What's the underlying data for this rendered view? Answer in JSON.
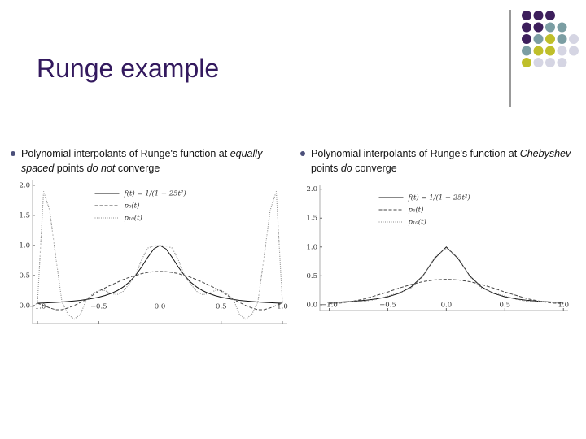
{
  "slide": {
    "title": "Runge example",
    "bullets": [
      [
        {
          "text": "Polynomial interpolants of Runge's function at ",
          "italic": false
        },
        {
          "text": "equally spaced",
          "italic": true
        },
        {
          "text": " points ",
          "italic": false
        },
        {
          "text": "do not",
          "italic": true
        },
        {
          "text": " converge",
          "italic": false
        }
      ],
      [
        {
          "text": "Polynomial interpolants of Runge's function at ",
          "italic": false
        },
        {
          "text": "Chebyshev",
          "italic": true
        },
        {
          "text": " points ",
          "italic": false
        },
        {
          "text": "do",
          "italic": true
        },
        {
          "text": " converge",
          "italic": false
        }
      ]
    ]
  },
  "chart_data": [
    {
      "type": "line",
      "legend": "upper center",
      "x": [
        -1,
        -0.95,
        -0.9,
        -0.85,
        -0.8,
        -0.75,
        -0.7,
        -0.65,
        -0.6,
        -0.55,
        -0.5,
        -0.45,
        -0.4,
        -0.35,
        -0.3,
        -0.25,
        -0.2,
        -0.15,
        -0.1,
        -0.05,
        0,
        0.05,
        0.1,
        0.15,
        0.2,
        0.25,
        0.3,
        0.35,
        0.4,
        0.45,
        0.5,
        0.55,
        0.6,
        0.65,
        0.7,
        0.75,
        0.8,
        0.85,
        0.9,
        0.95,
        1
      ],
      "series": [
        {
          "name": "f(t) = 1/(1 + 25t²)",
          "color": "#111111",
          "dash": "solid",
          "values": [
            0.0385,
            0.042,
            0.047,
            0.052,
            0.0588,
            0.066,
            0.075,
            0.086,
            0.1,
            0.117,
            0.138,
            0.165,
            0.2,
            0.246,
            0.308,
            0.39,
            0.5,
            0.64,
            0.8,
            0.941,
            1,
            0.941,
            0.8,
            0.64,
            0.5,
            0.39,
            0.308,
            0.246,
            0.2,
            0.165,
            0.138,
            0.117,
            0.1,
            0.086,
            0.075,
            0.066,
            0.0588,
            0.052,
            0.047,
            0.042,
            0.0385
          ]
        },
        {
          "name": "p₅(t)",
          "color": "#444444",
          "dash": "dashed",
          "values": [
            0.0385,
            0,
            -0.04,
            -0.07,
            -0.07,
            -0.04,
            0,
            0.05,
            0.1,
            0.17,
            0.24,
            0.29,
            0.34,
            0.385,
            0.43,
            0.47,
            0.5,
            0.53,
            0.55,
            0.563,
            0.567,
            0.563,
            0.55,
            0.53,
            0.5,
            0.47,
            0.43,
            0.385,
            0.34,
            0.29,
            0.24,
            0.17,
            0.1,
            0.05,
            0,
            -0.04,
            -0.07,
            -0.07,
            -0.04,
            0,
            0.0385
          ]
        },
        {
          "name": "p₁₀(t)",
          "color": "#888888",
          "dash": "dotted",
          "values": [
            0.0385,
            1.9,
            1.58,
            0.8,
            0.0588,
            -0.15,
            -0.226,
            -0.15,
            0.1,
            0.19,
            0.254,
            0.25,
            0.2,
            0.18,
            0.235,
            0.36,
            0.5,
            0.76,
            0.956,
            0.99,
            1,
            0.99,
            0.956,
            0.76,
            0.5,
            0.36,
            0.235,
            0.18,
            0.2,
            0.25,
            0.254,
            0.19,
            0.1,
            -0.15,
            -0.226,
            -0.15,
            0.0588,
            0.8,
            1.58,
            1.9,
            0.0385
          ]
        }
      ],
      "xlim": [
        -1.04,
        1.04
      ],
      "ylim": [
        -0.3,
        2.08
      ],
      "xticks": [
        {
          "value": -1,
          "label": "−1.0"
        },
        {
          "value": -0.5,
          "label": "−0.5"
        },
        {
          "value": 0,
          "label": "0.0"
        },
        {
          "value": 0.5,
          "label": "0.5"
        },
        {
          "value": 1,
          "label": "1.0"
        }
      ],
      "yticks": [
        {
          "value": 0,
          "label": "0.0"
        },
        {
          "value": 0.5,
          "label": "0.5"
        },
        {
          "value": 1,
          "label": "1.0"
        },
        {
          "value": 1.5,
          "label": "1.5"
        },
        {
          "value": 2,
          "label": "2.0"
        }
      ]
    },
    {
      "type": "line",
      "legend": "upper center",
      "x": [
        -1,
        -0.9,
        -0.8,
        -0.7,
        -0.6,
        -0.5,
        -0.4,
        -0.3,
        -0.2,
        -0.1,
        0,
        0.1,
        0.2,
        0.3,
        0.4,
        0.5,
        0.6,
        0.7,
        0.8,
        0.9,
        1
      ],
      "series": [
        {
          "name": "f(t) = 1/(1 + 25t²)",
          "color": "#111111",
          "dash": "solid",
          "values": [
            0.0385,
            0.047,
            0.0588,
            0.075,
            0.1,
            0.138,
            0.2,
            0.308,
            0.5,
            0.8,
            1,
            0.8,
            0.5,
            0.308,
            0.2,
            0.138,
            0.1,
            0.075,
            0.0588,
            0.047,
            0.0385
          ]
        },
        {
          "name": "p₅(t)",
          "color": "#444444",
          "dash": "dashed",
          "values": [
            0.02,
            0.03,
            0.06,
            0.1,
            0.16,
            0.22,
            0.29,
            0.35,
            0.4,
            0.43,
            0.44,
            0.43,
            0.4,
            0.35,
            0.29,
            0.22,
            0.16,
            0.1,
            0.06,
            0.03,
            0.02
          ]
        },
        {
          "name": "p₁₀(t)",
          "color": "#888888",
          "dash": "dotted",
          "values": [
            0.01,
            0.04,
            0.06,
            0.06,
            0.09,
            0.15,
            0.21,
            0.29,
            0.49,
            0.82,
            0.98,
            0.82,
            0.49,
            0.29,
            0.21,
            0.15,
            0.09,
            0.06,
            0.06,
            0.04,
            0.01
          ]
        }
      ],
      "xlim": [
        -1.08,
        1.04
      ],
      "ylim": [
        -0.1,
        2.08
      ],
      "xticks": [
        {
          "value": -1,
          "label": "−1.0"
        },
        {
          "value": -0.5,
          "label": "−0.5"
        },
        {
          "value": 0,
          "label": "0.0"
        },
        {
          "value": 0.5,
          "label": "0.5"
        },
        {
          "value": 1,
          "label": "1.0"
        }
      ],
      "yticks": [
        {
          "value": 0,
          "label": "0.0"
        },
        {
          "value": 0.5,
          "label": "0.5"
        },
        {
          "value": 1,
          "label": "1.0"
        },
        {
          "value": 1.5,
          "label": "1.5"
        },
        {
          "value": 2,
          "label": "2.0"
        }
      ]
    }
  ]
}
